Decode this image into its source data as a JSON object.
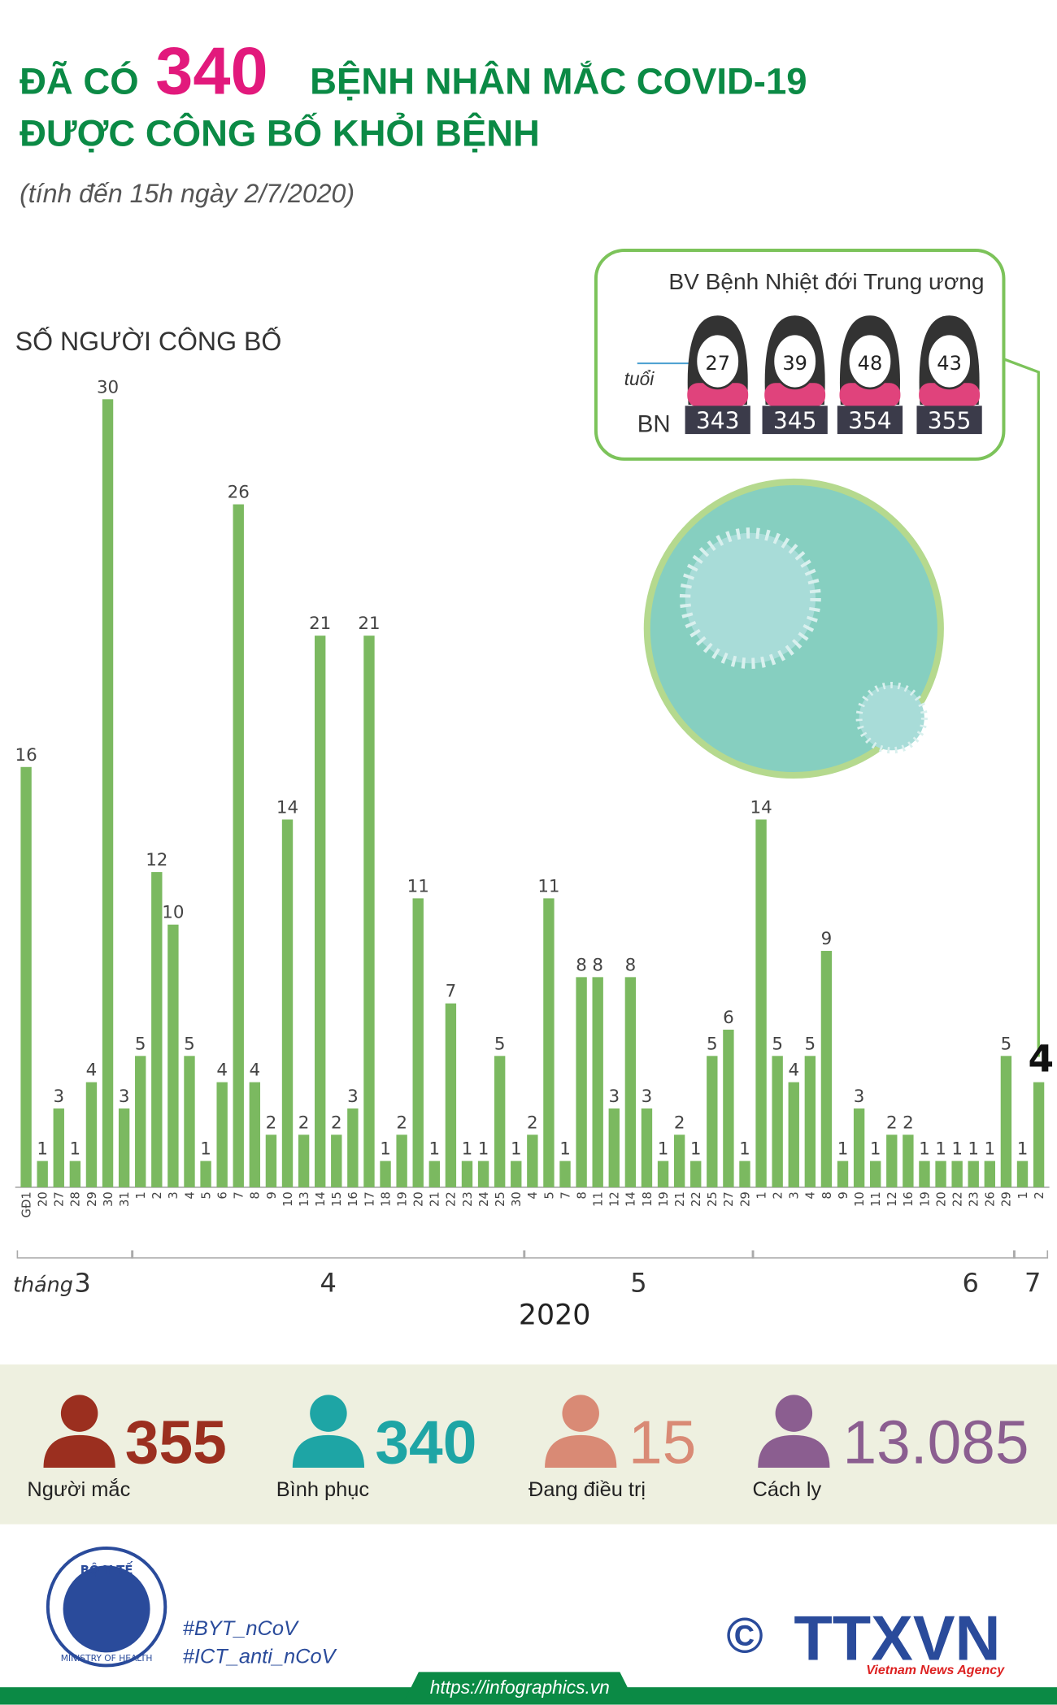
{
  "header": {
    "title_pre": "ĐÃ CÓ",
    "title_number": "340",
    "title_post": "BỆNH NHÂN MẮC COVID-19",
    "title_line2": "ĐƯỢC CÔNG BỐ KHỎI BỆNH",
    "subtitle": "(tính đến 15h ngày 2/7/2020)"
  },
  "chart_data": {
    "type": "bar",
    "y_label": "SỐ NGƯỜI CÔNG BỐ",
    "month_label": "tháng",
    "x_label": "2020",
    "color": "#7bb960",
    "groups": [
      {
        "label": "3",
        "categories": [
          "GĐ1",
          "20",
          "27",
          "28",
          "29",
          "30",
          "31"
        ],
        "values": [
          16,
          1,
          3,
          1,
          4,
          30,
          3
        ]
      },
      {
        "label": "4",
        "categories": [
          "1",
          "2",
          "3",
          "4",
          "5",
          "6",
          "7",
          "8",
          "9",
          "10",
          "13",
          "14",
          "15",
          "16",
          "17",
          "18",
          "19",
          "20",
          "21",
          "22",
          "23",
          "24",
          "25",
          "30"
        ],
        "values": [
          5,
          12,
          10,
          5,
          1,
          4,
          26,
          4,
          2,
          14,
          2,
          21,
          2,
          3,
          21,
          1,
          2,
          11,
          1,
          7,
          1,
          1,
          5,
          1
        ]
      },
      {
        "label": "5",
        "categories": [
          "4",
          "5",
          "7",
          "8",
          "11",
          "12",
          "14",
          "18",
          "19",
          "21",
          "22",
          "25",
          "27",
          "29"
        ],
        "values": [
          2,
          11,
          1,
          8,
          8,
          3,
          8,
          3,
          1,
          2,
          1,
          5,
          6,
          1
        ]
      },
      {
        "label": "6",
        "categories": [
          "1",
          "2",
          "3",
          "4",
          "8",
          "9",
          "10",
          "11",
          "12",
          "16",
          "19",
          "20",
          "22",
          "23",
          "26",
          "29"
        ],
        "values": [
          14,
          5,
          4,
          5,
          9,
          1,
          3,
          1,
          2,
          2,
          1,
          1,
          1,
          1,
          1,
          5
        ]
      },
      {
        "label": "7",
        "categories": [
          "1",
          "2"
        ],
        "values": [
          1,
          4
        ]
      }
    ]
  },
  "hospital": {
    "name": "BV Bệnh Nhiệt đới Trung ương",
    "age_label": "tuổi",
    "id_label": "BN",
    "patients": [
      {
        "age": "27",
        "id": "343"
      },
      {
        "age": "39",
        "id": "345"
      },
      {
        "age": "48",
        "id": "354"
      },
      {
        "age": "43",
        "id": "355"
      }
    ]
  },
  "stats": [
    {
      "value": "355",
      "label": "Người mắc"
    },
    {
      "value": "340",
      "label": "Bình phục"
    },
    {
      "value": "15",
      "label": "Đang điều trị"
    },
    {
      "value": "13.085",
      "label": "Cách ly"
    }
  ],
  "footer": {
    "ministry_top": "BỘ Y TẾ",
    "ministry_bottom": "MINISTRY OF HEALTH",
    "hashtags": [
      "#BYT_nCoV",
      "#ICT_anti_nCoV"
    ],
    "copyright": "©",
    "agency": "TTXVN",
    "agency_en": "Vietnam News Agency",
    "url": "https://infographics.vn"
  }
}
